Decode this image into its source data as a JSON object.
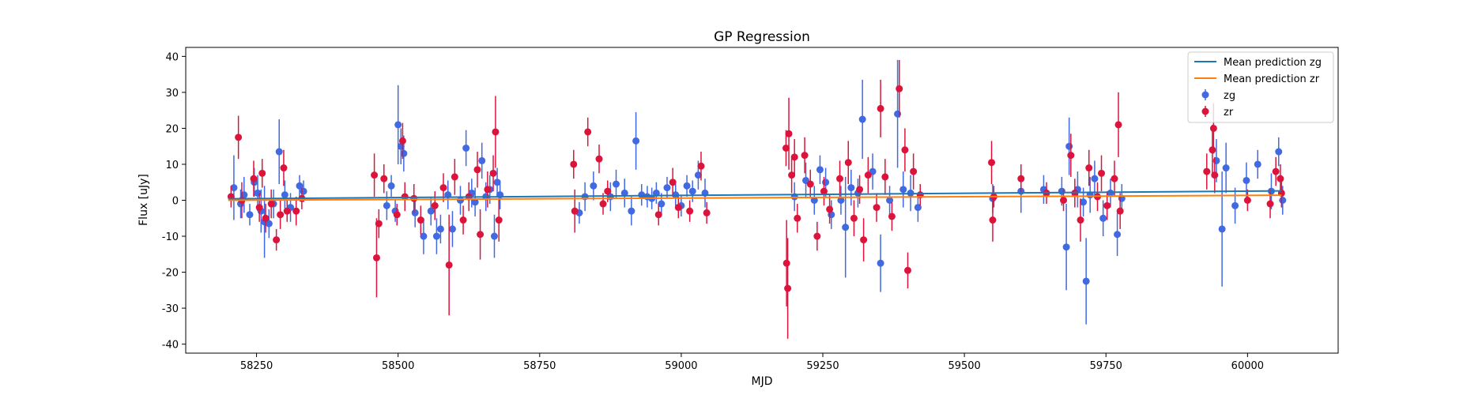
{
  "chart_data": {
    "type": "scatter",
    "title": "GP Regression",
    "xlabel": "MJD",
    "ylabel": "Flux [uJy]",
    "xlim": [
      58125,
      60160
    ],
    "ylim": [
      -42.5,
      42.5
    ],
    "xticks": [
      58250,
      58500,
      58750,
      59000,
      59250,
      59500,
      59750,
      60000
    ],
    "yticks": [
      -40,
      -30,
      -20,
      -10,
      0,
      10,
      20,
      30,
      40
    ],
    "grid": false,
    "legend_position": "top-right",
    "lines": [
      {
        "name": "Mean prediction zg",
        "color": "#1f77b4",
        "x": [
          58200,
          60060
        ],
        "y": [
          0.4,
          2.6
        ]
      },
      {
        "name": "Mean prediction zr",
        "color": "#ff7f0e",
        "x": [
          58200,
          60060
        ],
        "y": [
          0.0,
          1.4
        ]
      }
    ],
    "series": [
      {
        "name": "zg",
        "color": "#4169e1",
        "points": [
          {
            "x": 58210,
            "y": 3.5,
            "err": 9
          },
          {
            "x": 58222,
            "y": -1.0,
            "err": 4
          },
          {
            "x": 58228,
            "y": 1.5,
            "err": 5
          },
          {
            "x": 58238,
            "y": -4.0,
            "err": 3
          },
          {
            "x": 58246,
            "y": 5.0,
            "err": 4
          },
          {
            "x": 58252,
            "y": 2.0,
            "err": 5
          },
          {
            "x": 58258,
            "y": -3.0,
            "err": 6
          },
          {
            "x": 58264,
            "y": -6.0,
            "err": 10
          },
          {
            "x": 58272,
            "y": -6.5,
            "err": 4
          },
          {
            "x": 58280,
            "y": -1.0,
            "err": 4
          },
          {
            "x": 58290,
            "y": 13.5,
            "err": 9
          },
          {
            "x": 58300,
            "y": 1.5,
            "err": 4
          },
          {
            "x": 58310,
            "y": -2.0,
            "err": 4
          },
          {
            "x": 58326,
            "y": 4.0,
            "err": 3
          },
          {
            "x": 58333,
            "y": 2.5,
            "err": 3
          },
          {
            "x": 58480,
            "y": -1.5,
            "err": 4
          },
          {
            "x": 58488,
            "y": 4.0,
            "err": 3
          },
          {
            "x": 58495,
            "y": -3.0,
            "err": 3
          },
          {
            "x": 58500,
            "y": 21.0,
            "err": 11
          },
          {
            "x": 58505,
            "y": 15.0,
            "err": 5
          },
          {
            "x": 58510,
            "y": 13.0,
            "err": 5
          },
          {
            "x": 58530,
            "y": -3.5,
            "err": 4
          },
          {
            "x": 58545,
            "y": -10.0,
            "err": 5
          },
          {
            "x": 58558,
            "y": -3.0,
            "err": 4
          },
          {
            "x": 58568,
            "y": -10.0,
            "err": 5
          },
          {
            "x": 58575,
            "y": -8.0,
            "err": 4
          },
          {
            "x": 58588,
            "y": 1.5,
            "err": 4
          },
          {
            "x": 58596,
            "y": -8.0,
            "err": 5
          },
          {
            "x": 58610,
            "y": 0.0,
            "err": 4
          },
          {
            "x": 58620,
            "y": 14.5,
            "err": 5
          },
          {
            "x": 58630,
            "y": 2.0,
            "err": 4
          },
          {
            "x": 58636,
            "y": -0.5,
            "err": 4
          },
          {
            "x": 58648,
            "y": 11.0,
            "err": 5
          },
          {
            "x": 58655,
            "y": 1.0,
            "err": 4
          },
          {
            "x": 58662,
            "y": 3.0,
            "err": 4
          },
          {
            "x": 58670,
            "y": -10.0,
            "err": 6
          },
          {
            "x": 58675,
            "y": 5.0,
            "err": 4
          },
          {
            "x": 58680,
            "y": 1.5,
            "err": 4
          },
          {
            "x": 58820,
            "y": -3.5,
            "err": 3
          },
          {
            "x": 58830,
            "y": 1.0,
            "err": 4
          },
          {
            "x": 58845,
            "y": 4.0,
            "err": 4
          },
          {
            "x": 58875,
            "y": 1.0,
            "err": 4
          },
          {
            "x": 58885,
            "y": 4.5,
            "err": 4
          },
          {
            "x": 58900,
            "y": 2.0,
            "err": 4
          },
          {
            "x": 58912,
            "y": -3.0,
            "err": 4
          },
          {
            "x": 58920,
            "y": 16.5,
            "err": 8
          },
          {
            "x": 58930,
            "y": 1.5,
            "err": 3
          },
          {
            "x": 58940,
            "y": 1.0,
            "err": 3
          },
          {
            "x": 58948,
            "y": 0.5,
            "err": 3
          },
          {
            "x": 58956,
            "y": 2.0,
            "err": 3
          },
          {
            "x": 58965,
            "y": -1.0,
            "err": 3
          },
          {
            "x": 58975,
            "y": 3.5,
            "err": 3
          },
          {
            "x": 58990,
            "y": 1.5,
            "err": 3
          },
          {
            "x": 59000,
            "y": -1.5,
            "err": 3
          },
          {
            "x": 59010,
            "y": 4.0,
            "err": 3
          },
          {
            "x": 59020,
            "y": 2.5,
            "err": 3
          },
          {
            "x": 59030,
            "y": 7.0,
            "err": 4
          },
          {
            "x": 59042,
            "y": 2.0,
            "err": 4
          },
          {
            "x": 59200,
            "y": 1.0,
            "err": 4
          },
          {
            "x": 59220,
            "y": 5.5,
            "err": 5
          },
          {
            "x": 59235,
            "y": 0.0,
            "err": 4
          },
          {
            "x": 59245,
            "y": 8.5,
            "err": 4
          },
          {
            "x": 59255,
            "y": 5.0,
            "err": 4
          },
          {
            "x": 59265,
            "y": -4.0,
            "err": 4
          },
          {
            "x": 59282,
            "y": 0.0,
            "err": 4
          },
          {
            "x": 59290,
            "y": -7.5,
            "err": 14
          },
          {
            "x": 59300,
            "y": 3.5,
            "err": 5
          },
          {
            "x": 59312,
            "y": 2.0,
            "err": 4
          },
          {
            "x": 59320,
            "y": 22.5,
            "err": 11
          },
          {
            "x": 59338,
            "y": 8.0,
            "err": 5
          },
          {
            "x": 59352,
            "y": -17.5,
            "err": 8
          },
          {
            "x": 59368,
            "y": 0.0,
            "err": 4
          },
          {
            "x": 59382,
            "y": 24.0,
            "err": 15
          },
          {
            "x": 59392,
            "y": 3.0,
            "err": 5
          },
          {
            "x": 59405,
            "y": 2.0,
            "err": 5
          },
          {
            "x": 59418,
            "y": -2.0,
            "err": 4
          },
          {
            "x": 59550,
            "y": 0.5,
            "err": 4
          },
          {
            "x": 59600,
            "y": 2.5,
            "err": 6
          },
          {
            "x": 59640,
            "y": 3.0,
            "err": 4
          },
          {
            "x": 59672,
            "y": 2.5,
            "err": 4
          },
          {
            "x": 59680,
            "y": -13.0,
            "err": 12
          },
          {
            "x": 59685,
            "y": 15.0,
            "err": 8
          },
          {
            "x": 59700,
            "y": 3.0,
            "err": 5
          },
          {
            "x": 59710,
            "y": -0.5,
            "err": 4
          },
          {
            "x": 59715,
            "y": -22.5,
            "err": 12
          },
          {
            "x": 59722,
            "y": 1.5,
            "err": 5
          },
          {
            "x": 59730,
            "y": 6.0,
            "err": 5
          },
          {
            "x": 59745,
            "y": -5.0,
            "err": 5
          },
          {
            "x": 59758,
            "y": 2.0,
            "err": 4
          },
          {
            "x": 59770,
            "y": -9.5,
            "err": 6
          },
          {
            "x": 59778,
            "y": 0.5,
            "err": 4
          },
          {
            "x": 59945,
            "y": 11.0,
            "err": 6
          },
          {
            "x": 59955,
            "y": -8.0,
            "err": 16
          },
          {
            "x": 59962,
            "y": 9.0,
            "err": 7
          },
          {
            "x": 59978,
            "y": -1.5,
            "err": 5
          },
          {
            "x": 59998,
            "y": 5.5,
            "err": 5
          },
          {
            "x": 60018,
            "y": 10.0,
            "err": 4
          },
          {
            "x": 60042,
            "y": 2.5,
            "err": 5
          },
          {
            "x": 60055,
            "y": 13.5,
            "err": 4
          },
          {
            "x": 60062,
            "y": 0.0,
            "err": 4
          }
        ]
      },
      {
        "name": "zr",
        "color": "#dc143c",
        "points": [
          {
            "x": 58205,
            "y": 1.0,
            "err": 3
          },
          {
            "x": 58218,
            "y": 17.5,
            "err": 6
          },
          {
            "x": 58224,
            "y": 0.0,
            "err": 5
          },
          {
            "x": 58245,
            "y": 6.0,
            "err": 5
          },
          {
            "x": 58255,
            "y": -2.0,
            "err": 4
          },
          {
            "x": 58260,
            "y": 7.5,
            "err": 4
          },
          {
            "x": 58266,
            "y": -5.0,
            "err": 4
          },
          {
            "x": 58276,
            "y": -1.0,
            "err": 4
          },
          {
            "x": 58285,
            "y": -11.0,
            "err": 3
          },
          {
            "x": 58292,
            "y": -4.0,
            "err": 4
          },
          {
            "x": 58298,
            "y": 9.0,
            "err": 5
          },
          {
            "x": 58304,
            "y": -3.0,
            "err": 3
          },
          {
            "x": 58320,
            "y": -3.0,
            "err": 4
          },
          {
            "x": 58330,
            "y": 0.5,
            "err": 3
          },
          {
            "x": 58458,
            "y": 7.0,
            "err": 6
          },
          {
            "x": 58462,
            "y": -16.0,
            "err": 11
          },
          {
            "x": 58466,
            "y": -6.5,
            "err": 4
          },
          {
            "x": 58475,
            "y": 6.0,
            "err": 4
          },
          {
            "x": 58498,
            "y": -4.0,
            "err": 3
          },
          {
            "x": 58508,
            "y": 16.5,
            "err": 5
          },
          {
            "x": 58512,
            "y": 1.0,
            "err": 4
          },
          {
            "x": 58528,
            "y": 0.5,
            "err": 4
          },
          {
            "x": 58540,
            "y": -5.5,
            "err": 4
          },
          {
            "x": 58565,
            "y": -1.5,
            "err": 4
          },
          {
            "x": 58580,
            "y": 3.5,
            "err": 4
          },
          {
            "x": 58590,
            "y": -18.0,
            "err": 14
          },
          {
            "x": 58600,
            "y": 6.5,
            "err": 5
          },
          {
            "x": 58615,
            "y": -5.5,
            "err": 4
          },
          {
            "x": 58625,
            "y": 1.0,
            "err": 4
          },
          {
            "x": 58640,
            "y": 8.5,
            "err": 5
          },
          {
            "x": 58645,
            "y": -9.5,
            "err": 7
          },
          {
            "x": 58658,
            "y": 3.0,
            "err": 5
          },
          {
            "x": 58668,
            "y": 7.5,
            "err": 5
          },
          {
            "x": 58672,
            "y": 19.0,
            "err": 10
          },
          {
            "x": 58678,
            "y": -5.5,
            "err": 6
          },
          {
            "x": 58810,
            "y": 10.0,
            "err": 4
          },
          {
            "x": 58812,
            "y": -3.0,
            "err": 6
          },
          {
            "x": 58835,
            "y": 19.0,
            "err": 4
          },
          {
            "x": 58855,
            "y": 11.5,
            "err": 4
          },
          {
            "x": 58862,
            "y": -1.0,
            "err": 3
          },
          {
            "x": 58870,
            "y": 2.5,
            "err": 3
          },
          {
            "x": 58960,
            "y": -4.0,
            "err": 3
          },
          {
            "x": 58985,
            "y": 5.0,
            "err": 4
          },
          {
            "x": 58995,
            "y": -2.0,
            "err": 3
          },
          {
            "x": 59015,
            "y": -3.0,
            "err": 3
          },
          {
            "x": 59035,
            "y": 9.5,
            "err": 4
          },
          {
            "x": 59045,
            "y": -3.5,
            "err": 3
          },
          {
            "x": 59185,
            "y": 14.5,
            "err": 5
          },
          {
            "x": 59186,
            "y": -17.5,
            "err": 12
          },
          {
            "x": 59188,
            "y": -24.5,
            "err": 14
          },
          {
            "x": 59190,
            "y": 18.5,
            "err": 10
          },
          {
            "x": 59195,
            "y": 7.0,
            "err": 5
          },
          {
            "x": 59200,
            "y": 12.0,
            "err": 5
          },
          {
            "x": 59205,
            "y": -5.0,
            "err": 4
          },
          {
            "x": 59218,
            "y": 12.5,
            "err": 5
          },
          {
            "x": 59228,
            "y": 4.5,
            "err": 4
          },
          {
            "x": 59240,
            "y": -10.0,
            "err": 4
          },
          {
            "x": 59252,
            "y": 2.5,
            "err": 4
          },
          {
            "x": 59262,
            "y": -2.5,
            "err": 4
          },
          {
            "x": 59280,
            "y": 6.0,
            "err": 5
          },
          {
            "x": 59295,
            "y": 10.5,
            "err": 6
          },
          {
            "x": 59305,
            "y": -5.0,
            "err": 5
          },
          {
            "x": 59315,
            "y": 3.0,
            "err": 4
          },
          {
            "x": 59322,
            "y": -11.0,
            "err": 6
          },
          {
            "x": 59330,
            "y": 7.0,
            "err": 5
          },
          {
            "x": 59345,
            "y": -2.0,
            "err": 4
          },
          {
            "x": 59352,
            "y": 25.5,
            "err": 8
          },
          {
            "x": 59360,
            "y": 6.5,
            "err": 5
          },
          {
            "x": 59372,
            "y": -4.5,
            "err": 4
          },
          {
            "x": 59385,
            "y": 31.0,
            "err": 8
          },
          {
            "x": 59395,
            "y": 14.0,
            "err": 6
          },
          {
            "x": 59400,
            "y": -19.5,
            "err": 5
          },
          {
            "x": 59410,
            "y": 8.0,
            "err": 5
          },
          {
            "x": 59422,
            "y": 1.5,
            "err": 3
          },
          {
            "x": 59548,
            "y": 10.5,
            "err": 6
          },
          {
            "x": 59550,
            "y": -5.5,
            "err": 6
          },
          {
            "x": 59552,
            "y": 1.0,
            "err": 3
          },
          {
            "x": 59600,
            "y": 6.0,
            "err": 4
          },
          {
            "x": 59645,
            "y": 2.0,
            "err": 3
          },
          {
            "x": 59675,
            "y": 0.0,
            "err": 3
          },
          {
            "x": 59688,
            "y": 12.5,
            "err": 6
          },
          {
            "x": 59695,
            "y": 2.0,
            "err": 4
          },
          {
            "x": 59705,
            "y": -5.5,
            "err": 6
          },
          {
            "x": 59720,
            "y": 9.0,
            "err": 5
          },
          {
            "x": 59735,
            "y": 1.0,
            "err": 4
          },
          {
            "x": 59742,
            "y": 7.5,
            "err": 5
          },
          {
            "x": 59752,
            "y": -1.5,
            "err": 4
          },
          {
            "x": 59765,
            "y": 6.0,
            "err": 5
          },
          {
            "x": 59772,
            "y": 21.0,
            "err": 9
          },
          {
            "x": 59775,
            "y": -3.0,
            "err": 5
          },
          {
            "x": 59928,
            "y": 8.0,
            "err": 5
          },
          {
            "x": 59938,
            "y": 14.0,
            "err": 7
          },
          {
            "x": 59940,
            "y": 20.0,
            "err": 7
          },
          {
            "x": 59942,
            "y": 7.0,
            "err": 5
          },
          {
            "x": 60000,
            "y": 0.0,
            "err": 3
          },
          {
            "x": 60040,
            "y": -1.0,
            "err": 4
          },
          {
            "x": 60050,
            "y": 8.0,
            "err": 4
          },
          {
            "x": 60058,
            "y": 6.0,
            "err": 4
          },
          {
            "x": 60060,
            "y": 2.0,
            "err": 4
          }
        ]
      }
    ]
  }
}
